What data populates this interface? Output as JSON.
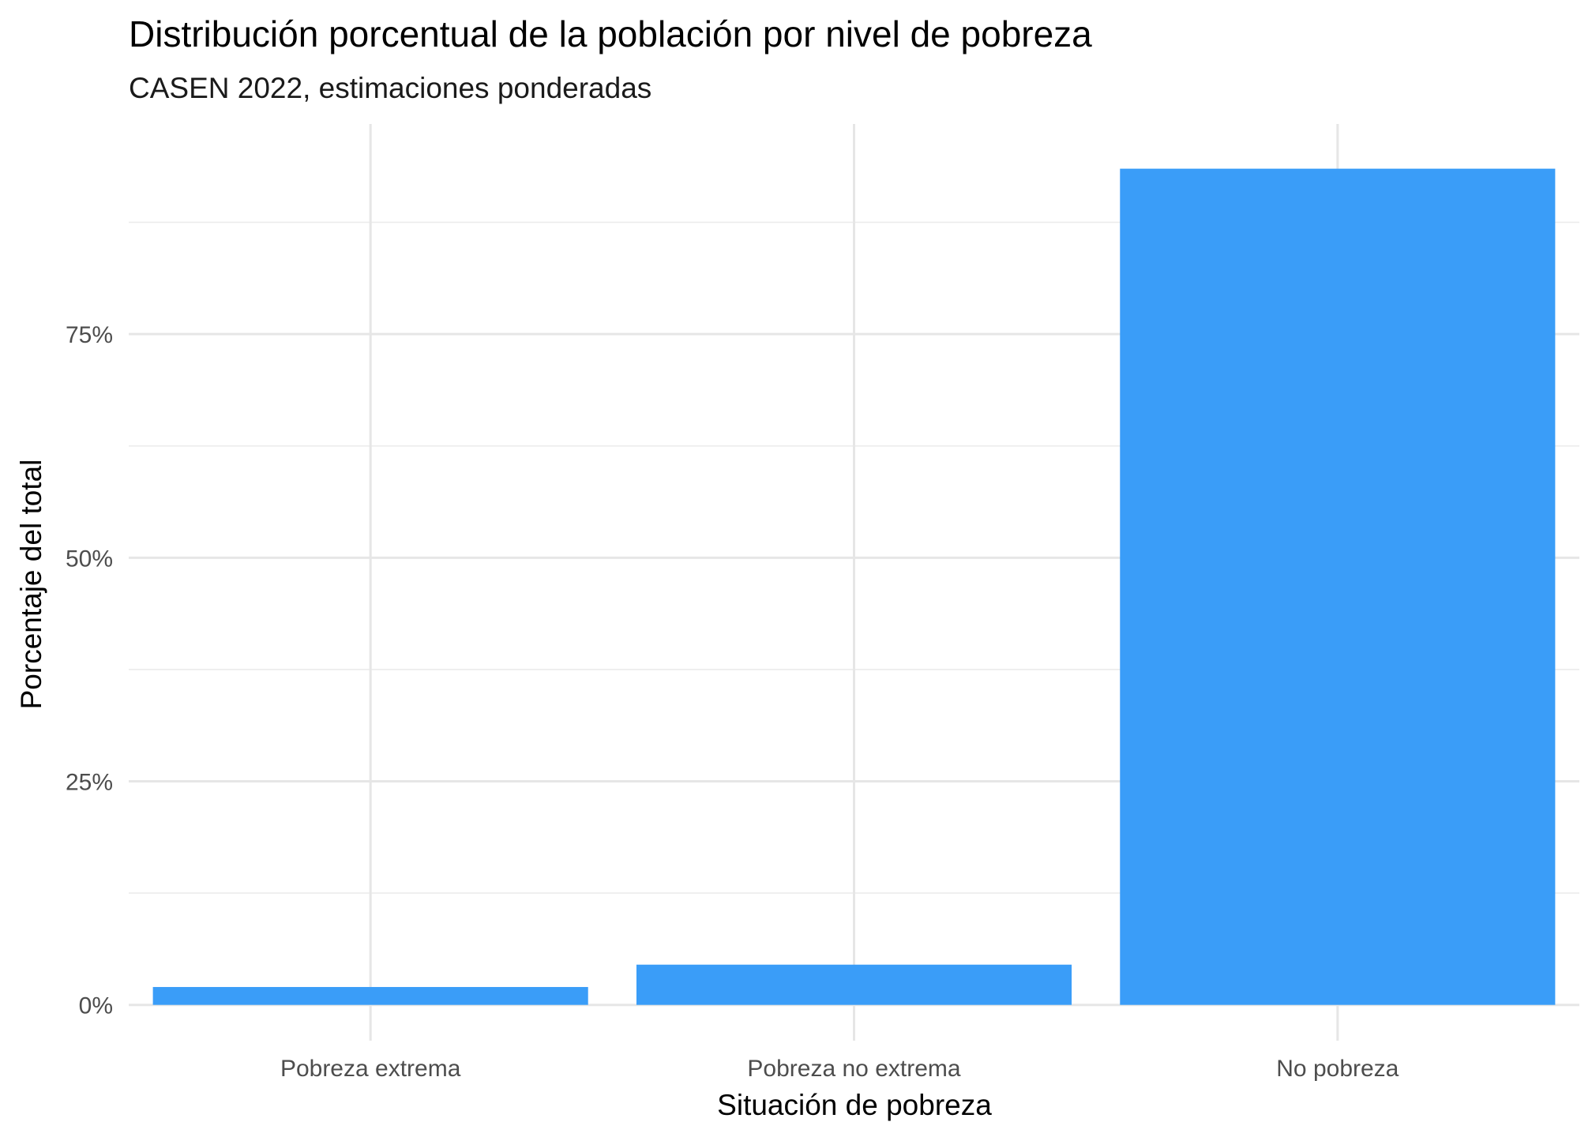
{
  "chart_data": {
    "type": "bar",
    "title": "Distribución porcentual de la población por nivel de pobreza",
    "subtitle": "CASEN 2022, estimaciones ponderadas",
    "xlabel": "Situación de pobreza",
    "ylabel": "Porcentaje del total",
    "categories": [
      "Pobreza extrema",
      "Pobreza no extrema",
      "No pobreza"
    ],
    "values": [
      2.0,
      4.5,
      93.5
    ],
    "ylim": [
      -4,
      98.5
    ],
    "yticks": [
      0,
      25,
      50,
      75
    ],
    "ytick_labels": [
      "0%",
      "25%",
      "50%",
      "75%"
    ],
    "grid": true,
    "legend": "none",
    "bar_color": "#3a9df8"
  }
}
